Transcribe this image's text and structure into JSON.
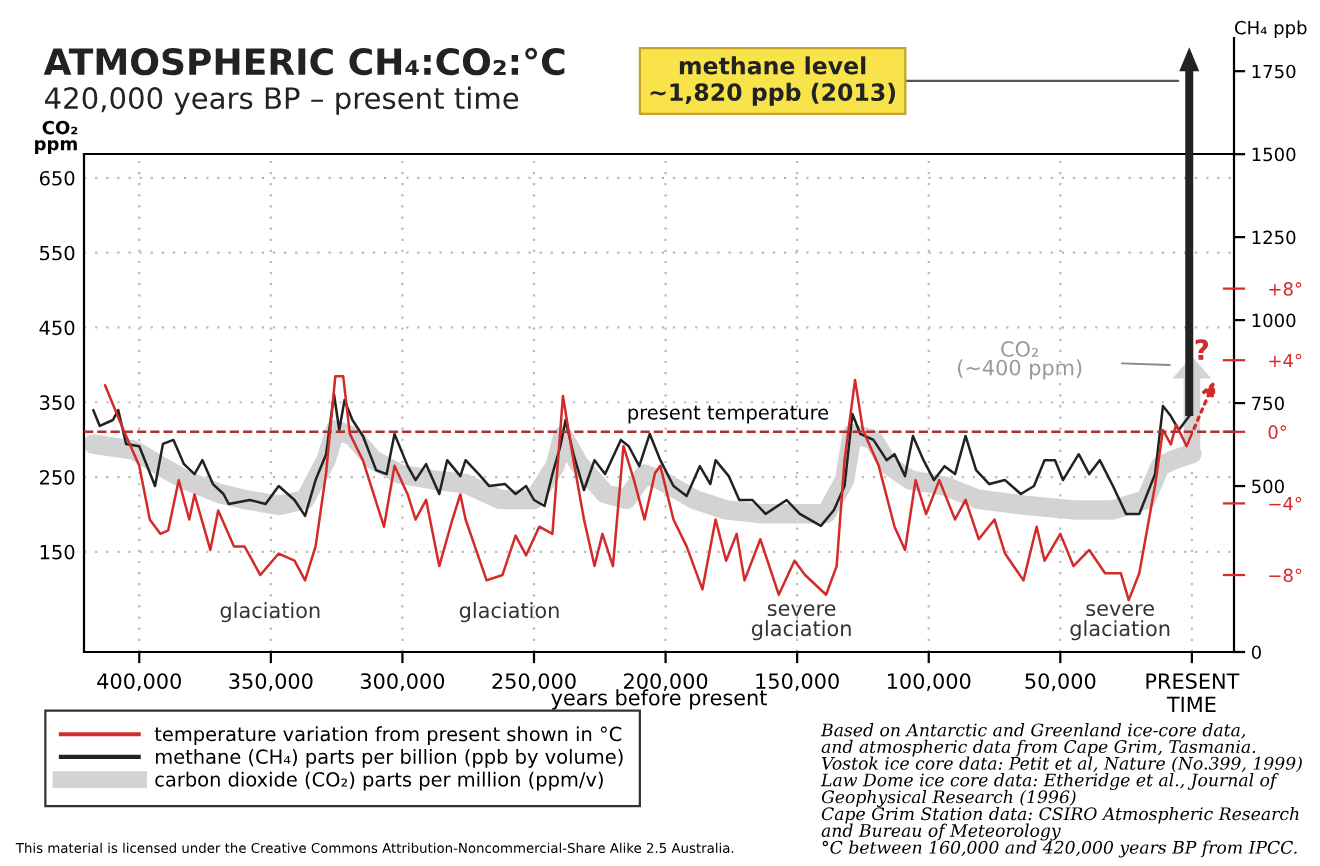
{
  "chart_data": {
    "type": "line",
    "title": "ATMOSPHERIC CH₄:CO₂:°C",
    "subtitle": "420,000 years BP – present time",
    "xlabel": "years before present",
    "ylabel": "CO₂\nppm",
    "y2label": "CH₄ ppb",
    "xlim": [
      421000,
      -16000
    ],
    "xticks": [
      {
        "value": 400000,
        "label": "400,000"
      },
      {
        "value": 350000,
        "label": "350,000"
      },
      {
        "value": 300000,
        "label": "300,000"
      },
      {
        "value": 250000,
        "label": "250,000"
      },
      {
        "value": 200000,
        "label": "200,000"
      },
      {
        "value": 150000,
        "label": "150,000"
      },
      {
        "value": 100000,
        "label": "100,000"
      },
      {
        "value": 50000,
        "label": "50,000"
      },
      {
        "value": 0,
        "label": "PRESENT\nTIME"
      }
    ],
    "ylim": [
      16,
      682
    ],
    "yticks": [
      150,
      250,
      350,
      450,
      550,
      650
    ],
    "y2lim": [
      0,
      1850
    ],
    "y2ticks": [
      0,
      500,
      750,
      1000,
      1250,
      1500,
      1750
    ],
    "y3lim": [
      -12.3,
      22.0
    ],
    "y3ticks": [
      {
        "value": 8,
        "label": "+8°"
      },
      {
        "value": 4,
        "label": "+4°"
      },
      {
        "value": 0,
        "label": "0°"
      },
      {
        "value": -4,
        "label": "−4°"
      },
      {
        "value": -8,
        "label": "−8°"
      }
    ],
    "grid": true,
    "line_style": "solid",
    "legend": "bottom left",
    "ref_lines": [
      {
        "axis": "y3",
        "value": 0,
        "label": "present temperature",
        "color": "#b03030",
        "line_style": "dashed"
      }
    ],
    "series": [
      {
        "name": "carbon dioxide (CO₂) parts per million (ppm/v)",
        "color": "#d3d3d3",
        "axis": "y",
        "x": [
          417500,
          402000,
          392000,
          382500,
          369500,
          360000,
          347000,
          337000,
          329000,
          325500,
          319000,
          311000,
          301000,
          288000,
          276000,
          263000,
          250000,
          242000,
          239000,
          233000,
          223000,
          215000,
          208000,
          202000,
          189000,
          177000,
          164000,
          151000,
          139000,
          132000,
          129000,
          121000,
          115000,
          107000,
          94000,
          81000,
          63000,
          45000,
          30000,
          17500,
          12000,
          7000,
          0
        ],
        "values": [
          294,
          286,
          265,
          246,
          228,
          220,
          212,
          220,
          273,
          313,
          305,
          273,
          254,
          246,
          241,
          220,
          220,
          265,
          305,
          268,
          228,
          220,
          254,
          246,
          220,
          206,
          201,
          201,
          201,
          246,
          308,
          300,
          265,
          246,
          238,
          220,
          212,
          206,
          206,
          220,
          265,
          273,
          281
        ]
      },
      {
        "name": "methane (CH₄) parts per billion (ppb by volume)",
        "color": "#222222",
        "axis": "y2",
        "x": [
          417500,
          415000,
          410000,
          408000,
          405000,
          400000,
          394000,
          391000,
          387000,
          383000,
          379000,
          376000,
          372000,
          368000,
          366000,
          358000,
          352000,
          347000,
          341000,
          337000,
          333000,
          329000,
          326000,
          324000,
          322000,
          319000,
          315000,
          310000,
          306000,
          303000,
          298000,
          295000,
          291000,
          286000,
          283000,
          278000,
          276000,
          271000,
          267000,
          261000,
          257000,
          253000,
          250000,
          246000,
          243000,
          240000,
          238000,
          235000,
          231000,
          227000,
          223000,
          217000,
          214000,
          210000,
          206000,
          202000,
          197000,
          192000,
          187000,
          183000,
          181000,
          176000,
          172000,
          167000,
          162000,
          154000,
          149000,
          141000,
          136000,
          132000,
          129000,
          126000,
          121000,
          116000,
          113000,
          109000,
          106000,
          102000,
          98000,
          94000,
          90000,
          86000,
          82000,
          77000,
          71000,
          65000,
          60000,
          56000,
          52000,
          49000,
          43000,
          39000,
          35000,
          30000,
          25000,
          20000,
          14000,
          11000,
          8000,
          5000,
          1000
        ],
        "values": [
          729,
          681,
          699,
          729,
          627,
          620,
          500,
          627,
          639,
          566,
          536,
          578,
          506,
          476,
          446,
          458,
          446,
          500,
          458,
          410,
          518,
          596,
          777,
          669,
          759,
          699,
          651,
          548,
          536,
          657,
          560,
          518,
          566,
          476,
          578,
          530,
          578,
          536,
          500,
          506,
          476,
          500,
          458,
          440,
          536,
          620,
          699,
          596,
          488,
          578,
          536,
          639,
          620,
          560,
          657,
          578,
          500,
          470,
          560,
          506,
          578,
          530,
          458,
          458,
          416,
          458,
          416,
          380,
          428,
          500,
          717,
          657,
          639,
          578,
          596,
          530,
          651,
          578,
          518,
          560,
          536,
          651,
          548,
          506,
          518,
          476,
          500,
          578,
          578,
          518,
          596,
          536,
          578,
          500,
          416,
          416,
          536,
          741,
          711,
          669,
          711
        ]
      },
      {
        "name": "temperature variation from present shown in °C",
        "color": "#d42a2a",
        "axis": "y3",
        "x": [
          413000,
          406000,
          400000,
          396000,
          392000,
          389000,
          385000,
          381000,
          379000,
          373000,
          370000,
          364000,
          360000,
          354000,
          347000,
          341000,
          337000,
          333000,
          329000,
          325500,
          322500,
          320000,
          315000,
          307000,
          303000,
          298000,
          295000,
          291000,
          286000,
          281000,
          278000,
          276000,
          268000,
          262000,
          257000,
          253000,
          248000,
          243000,
          239000,
          235000,
          231000,
          227000,
          224000,
          220000,
          216000,
          212000,
          208000,
          204000,
          202000,
          197000,
          192000,
          186000,
          181000,
          177000,
          173000,
          170000,
          164000,
          157000,
          151000,
          147000,
          139000,
          135000,
          132000,
          128000,
          125000,
          119000,
          113000,
          109000,
          105000,
          101000,
          96000,
          90000,
          86000,
          81000,
          75000,
          71000,
          64000,
          59000,
          56000,
          50000,
          45000,
          39000,
          33000,
          27000,
          24000,
          20000,
          14000,
          11000,
          8000,
          6000,
          2000,
          0
        ],
        "values": [
          2.6,
          0.1,
          -1.9,
          -4.9,
          -5.7,
          -5.5,
          -2.7,
          -4.9,
          -3.5,
          -6.6,
          -4.4,
          -6.4,
          -6.4,
          -8.0,
          -6.8,
          -7.2,
          -8.3,
          -6.4,
          -2.3,
          3.1,
          3.1,
          -0.1,
          -1.6,
          -5.3,
          -1.9,
          -3.5,
          -4.9,
          -3.8,
          -7.5,
          -4.9,
          -3.5,
          -4.9,
          -8.3,
          -8.0,
          -5.8,
          -6.9,
          -5.3,
          -5.7,
          2.0,
          -1.6,
          -4.9,
          -7.5,
          -5.7,
          -7.5,
          -0.8,
          -2.7,
          -4.9,
          -2.3,
          -1.9,
          -4.9,
          -6.4,
          -8.8,
          -4.9,
          -7.2,
          -5.7,
          -8.3,
          -6.0,
          -9.1,
          -7.2,
          -8.0,
          -9.1,
          -7.5,
          -1.6,
          2.9,
          0.1,
          -1.9,
          -5.3,
          -6.6,
          -2.7,
          -4.6,
          -2.7,
          -4.9,
          -3.8,
          -6.0,
          -4.9,
          -6.8,
          -8.3,
          -5.3,
          -7.2,
          -5.7,
          -7.5,
          -6.6,
          -7.9,
          -7.9,
          -9.4,
          -7.9,
          -3.0,
          0.1,
          -0.7,
          0.4,
          -0.8,
          -0.1
        ]
      }
    ],
    "annotations": [
      "Based on Antarctic and Greenland ice-core data,\nand atmospheric data from Cape Grim, Tasmania.\nVostok ice core data: Petit et al, Nature (No.399, 1999)\nLaw Dome ice core data: Etheridge et al., Journal of\nGeophysical Research (1996)\nCape Grim Station data: CSIRO Atmospheric Research\nand Bureau of Meteorology\n°C between 160,000 and 420,000 years BP from IPCC.",
      "This material is licensed under the Creative Commons Attribution-Noncommercial-Share Alike 2.5 Australia.",
      "glaciation",
      "glaciation",
      "severe\nglaciation",
      "severe\nglaciation",
      "methane level\n~1,820 ppb (2013)",
      "CO₂\n(~400 ppm)",
      "?"
    ]
  }
}
